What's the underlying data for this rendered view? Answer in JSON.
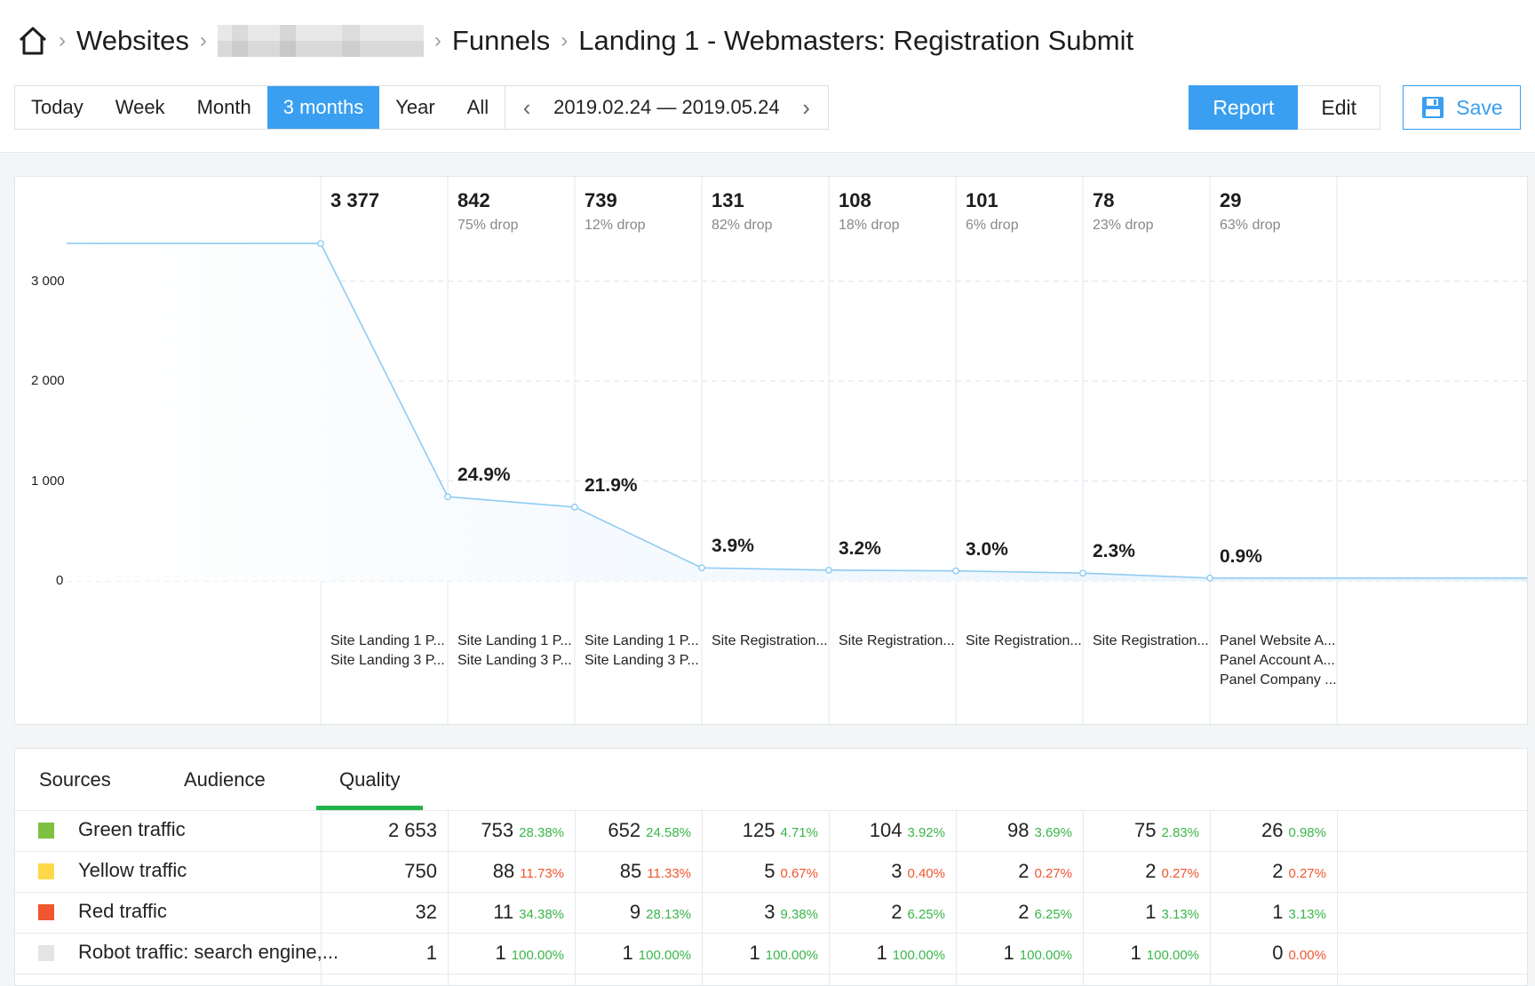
{
  "breadcrumb": {
    "home_icon": "home-icon",
    "items": [
      "Websites",
      "Funnels",
      "Landing 1 - Webmasters: Registration Submit"
    ]
  },
  "period": {
    "options": [
      "Today",
      "Week",
      "Month",
      "3 months",
      "Year",
      "All"
    ],
    "active": "3 months",
    "range": "2019.02.24 — 2019.05.24"
  },
  "actions": {
    "report": "Report",
    "edit": "Edit",
    "save": "Save"
  },
  "colors": {
    "accent": "#3a9ff0",
    "quality_underline": "#22b34b",
    "positive": "#3ab54a",
    "negative": "#f0562f"
  },
  "chart_data": {
    "type": "area",
    "yticks": [
      "3 000",
      "2 000",
      "1 000",
      "0"
    ],
    "ylim": [
      0,
      4000
    ],
    "steps": [
      {
        "value": 3377,
        "value_label": "3 377",
        "drop": "",
        "rate": "",
        "labels": [
          "Site Landing 1 P...",
          "Site Landing 3 P..."
        ]
      },
      {
        "value": 842,
        "value_label": "842",
        "drop": "75% drop",
        "rate": "24.9%",
        "labels": [
          "Site Landing 1 P...",
          "Site Landing 3 P..."
        ]
      },
      {
        "value": 739,
        "value_label": "739",
        "drop": "12% drop",
        "rate": "21.9%",
        "labels": [
          "Site Landing 1 P...",
          "Site Landing 3 P..."
        ]
      },
      {
        "value": 131,
        "value_label": "131",
        "drop": "82% drop",
        "rate": "3.9%",
        "labels": [
          "Site Registration..."
        ]
      },
      {
        "value": 108,
        "value_label": "108",
        "drop": "18% drop",
        "rate": "3.2%",
        "labels": [
          "Site Registration..."
        ]
      },
      {
        "value": 101,
        "value_label": "101",
        "drop": "6% drop",
        "rate": "3.0%",
        "labels": [
          "Site Registration..."
        ]
      },
      {
        "value": 78,
        "value_label": "78",
        "drop": "23% drop",
        "rate": "2.3%",
        "labels": [
          "Site Registration..."
        ]
      },
      {
        "value": 29,
        "value_label": "29",
        "drop": "63% drop",
        "rate": "0.9%",
        "labels": [
          "Panel Website A...",
          "Panel Account A...",
          "Panel Company ..."
        ]
      }
    ]
  },
  "tabs": [
    "Sources",
    "Audience",
    "Quality"
  ],
  "active_tab": "Quality",
  "table": {
    "rows": [
      {
        "label": "Green traffic",
        "color": "#7cc142",
        "cells": [
          {
            "n": "2 653",
            "p": ""
          },
          {
            "n": "753",
            "p": "28.38%"
          },
          {
            "n": "652",
            "p": "24.58%"
          },
          {
            "n": "125",
            "p": "4.71%"
          },
          {
            "n": "104",
            "p": "3.92%"
          },
          {
            "n": "98",
            "p": "3.69%"
          },
          {
            "n": "75",
            "p": "2.83%"
          },
          {
            "n": "26",
            "p": "0.98%"
          }
        ],
        "pct_color": "positive"
      },
      {
        "label": "Yellow traffic",
        "color": "#ffd84a",
        "cells": [
          {
            "n": "750",
            "p": ""
          },
          {
            "n": "88",
            "p": "11.73%"
          },
          {
            "n": "85",
            "p": "11.33%"
          },
          {
            "n": "5",
            "p": "0.67%"
          },
          {
            "n": "3",
            "p": "0.40%"
          },
          {
            "n": "2",
            "p": "0.27%"
          },
          {
            "n": "2",
            "p": "0.27%"
          },
          {
            "n": "2",
            "p": "0.27%"
          }
        ],
        "pct_color": "negative"
      },
      {
        "label": "Red traffic",
        "color": "#f0562f",
        "cells": [
          {
            "n": "32",
            "p": ""
          },
          {
            "n": "11",
            "p": "34.38%"
          },
          {
            "n": "9",
            "p": "28.13%"
          },
          {
            "n": "3",
            "p": "9.38%"
          },
          {
            "n": "2",
            "p": "6.25%"
          },
          {
            "n": "2",
            "p": "6.25%"
          },
          {
            "n": "1",
            "p": "3.13%"
          },
          {
            "n": "1",
            "p": "3.13%"
          }
        ],
        "pct_color": "positive"
      },
      {
        "label": "Robot traffic: search engine,...",
        "color": "#e4e4e4",
        "cells": [
          {
            "n": "1",
            "p": ""
          },
          {
            "n": "1",
            "p": "100.00%"
          },
          {
            "n": "1",
            "p": "100.00%"
          },
          {
            "n": "1",
            "p": "100.00%"
          },
          {
            "n": "1",
            "p": "100.00%"
          },
          {
            "n": "1",
            "p": "100.00%"
          },
          {
            "n": "1",
            "p": "100.00%"
          },
          {
            "n": "0",
            "p": "0.00%"
          }
        ],
        "pct_color": "positive",
        "zero_color": "negative"
      }
    ]
  }
}
